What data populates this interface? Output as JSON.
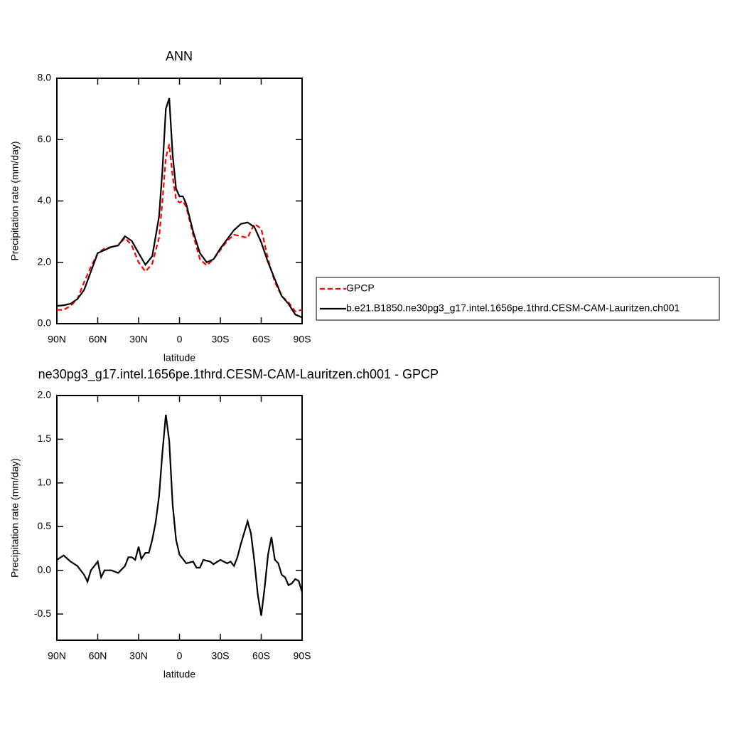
{
  "chart_data": [
    {
      "type": "line",
      "title": "ANN",
      "xlabel": "latitude",
      "ylabel": "Precipitation rate (mm/day)",
      "x": [
        90,
        85,
        80,
        75,
        70,
        65,
        60,
        55,
        50,
        45,
        40,
        35,
        30,
        25,
        20,
        15,
        12.5,
        10,
        7.5,
        5,
        2.5,
        0,
        -2.5,
        -5,
        -10,
        -15,
        -20,
        -25,
        -30,
        -35,
        -40,
        -45,
        -50,
        -55,
        -60,
        -65,
        -70,
        -75,
        -80,
        -85,
        -90
      ],
      "series": [
        {
          "name": "GPCP",
          "color": "#ff0000",
          "style": "dashed",
          "values": [
            0.45,
            0.45,
            0.58,
            0.8,
            1.35,
            1.85,
            2.3,
            2.45,
            2.5,
            2.55,
            2.8,
            2.55,
            2.0,
            1.7,
            1.95,
            2.8,
            4.0,
            5.4,
            5.85,
            4.8,
            4.05,
            3.95,
            4.0,
            3.8,
            2.9,
            2.1,
            1.9,
            2.1,
            2.4,
            2.7,
            2.9,
            2.85,
            2.8,
            3.25,
            3.1,
            2.1,
            1.35,
            0.9,
            0.7,
            0.4,
            0.45
          ]
        },
        {
          "name": "b.e21.B1850.ne30pg3_g17.intel.1656pe.1thrd.CESM-CAM-Lauritzen.ch001",
          "color": "#000000",
          "style": "solid",
          "values": [
            0.58,
            0.6,
            0.65,
            0.8,
            1.1,
            1.7,
            2.3,
            2.4,
            2.5,
            2.55,
            2.85,
            2.7,
            2.3,
            1.92,
            2.2,
            3.5,
            5.0,
            7.0,
            7.35,
            5.5,
            4.4,
            4.15,
            4.15,
            3.9,
            3.0,
            2.3,
            2.0,
            2.1,
            2.45,
            2.75,
            3.05,
            3.25,
            3.3,
            3.15,
            2.65,
            2.0,
            1.45,
            0.9,
            0.65,
            0.3,
            0.2
          ]
        }
      ],
      "xlim": [
        90,
        -90
      ],
      "xticks": [
        {
          "value": 90,
          "label": "90N"
        },
        {
          "value": 60,
          "label": "60N"
        },
        {
          "value": 30,
          "label": "30N"
        },
        0,
        {
          "value": -30,
          "label": "30S"
        },
        {
          "value": -60,
          "label": "60S"
        },
        {
          "value": -90,
          "label": "90S"
        }
      ],
      "ylim": [
        0,
        8
      ],
      "yticks": [
        {
          "value": 0,
          "label": "0.0"
        },
        {
          "value": 2,
          "label": "2.0"
        },
        {
          "value": 4,
          "label": "4.0"
        },
        {
          "value": 6,
          "label": "6.0"
        },
        {
          "value": 8,
          "label": "8.0"
        }
      ],
      "legend": "right"
    },
    {
      "type": "line",
      "title": "ne30pg3_g17.intel.1656pe.1thrd.CESM-CAM-Lauritzen.ch001 - GPCP",
      "xlabel": "latitude",
      "ylabel": "Precipitation rate (mm/day)",
      "x": [
        90,
        85,
        80,
        75,
        70,
        67.5,
        65,
        60,
        57.5,
        55,
        50,
        45,
        40,
        37.5,
        35,
        32.5,
        30,
        28,
        25,
        22.5,
        20,
        17.5,
        15,
        12.5,
        10,
        7.5,
        5,
        2.5,
        0,
        -5,
        -10,
        -12.5,
        -15,
        -17.5,
        -22.5,
        -25,
        -30,
        -35,
        -37.5,
        -40,
        -42.5,
        -45,
        -50,
        -52.5,
        -55,
        -57.5,
        -60,
        -62.5,
        -65,
        -67.5,
        -70,
        -72.5,
        -75,
        -77.5,
        -80,
        -82.5,
        -85,
        -87.5,
        -90
      ],
      "series": [
        {
          "color": "#000000",
          "style": "solid",
          "values": [
            0.12,
            0.17,
            0.1,
            0.05,
            -0.05,
            -0.13,
            0.0,
            0.1,
            -0.08,
            0.0,
            0.0,
            -0.03,
            0.05,
            0.15,
            0.15,
            0.12,
            0.27,
            0.13,
            0.2,
            0.2,
            0.35,
            0.55,
            0.85,
            1.35,
            1.78,
            1.48,
            0.75,
            0.35,
            0.18,
            0.08,
            0.1,
            0.03,
            0.03,
            0.12,
            0.1,
            0.07,
            0.12,
            0.08,
            0.1,
            0.05,
            0.15,
            0.3,
            0.56,
            0.42,
            0.1,
            -0.28,
            -0.52,
            -0.2,
            0.18,
            0.38,
            0.12,
            0.08,
            -0.05,
            -0.08,
            -0.17,
            -0.15,
            -0.1,
            -0.12,
            -0.25
          ]
        }
      ],
      "xlim": [
        90,
        -90
      ],
      "xticks": [
        {
          "value": 90,
          "label": "90N"
        },
        {
          "value": 60,
          "label": "60N"
        },
        {
          "value": 30,
          "label": "30N"
        },
        0,
        {
          "value": -30,
          "label": "30S"
        },
        {
          "value": -60,
          "label": "60S"
        },
        {
          "value": -90,
          "label": "90S"
        }
      ],
      "ylim": [
        -0.8,
        2.0
      ],
      "yticks": [
        {
          "value": -0.5,
          "label": "-0.5"
        },
        {
          "value": 0,
          "label": "0.0"
        },
        {
          "value": 0.5,
          "label": "0.5"
        },
        {
          "value": 1,
          "label": "1.0"
        },
        {
          "value": 1.5,
          "label": "1.5"
        },
        {
          "value": 2,
          "label": "2.0"
        }
      ]
    }
  ]
}
